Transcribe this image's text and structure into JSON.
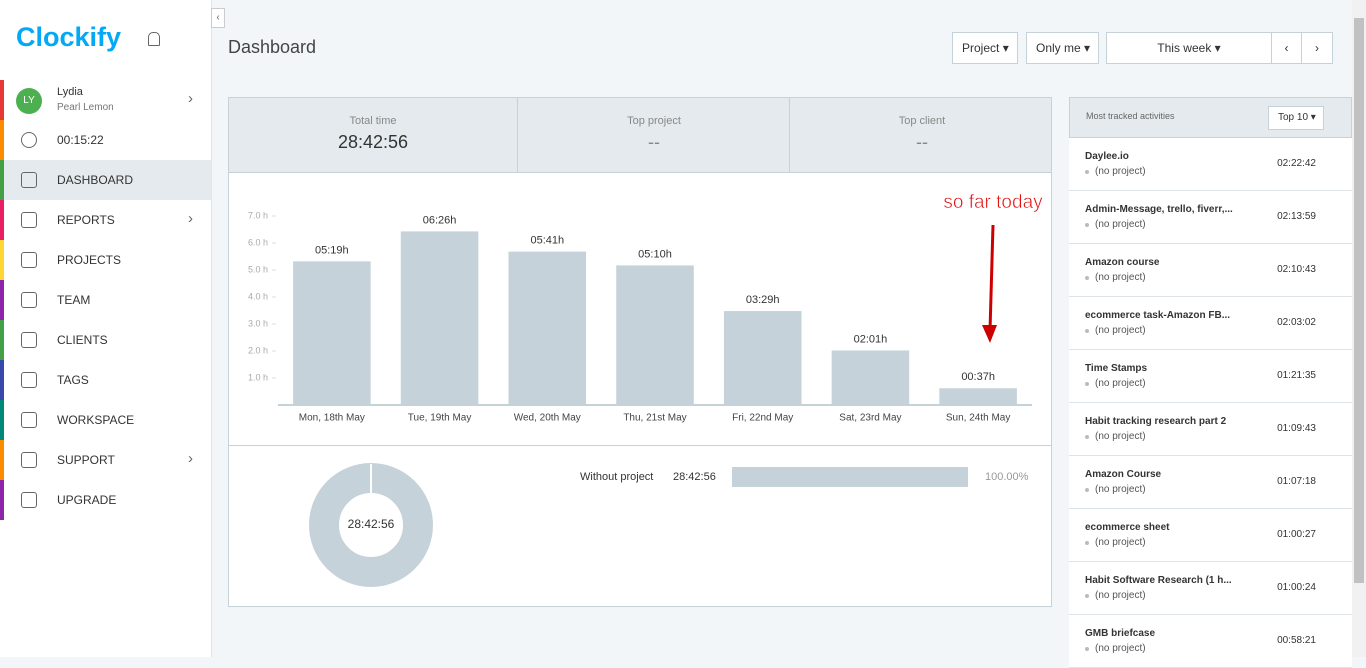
{
  "brand": "Clockify",
  "user": {
    "initials": "LY",
    "name": "Lydia",
    "workspace": "Pearl Lemon"
  },
  "timer": "00:15:22",
  "nav": [
    "DASHBOARD",
    "REPORTS",
    "PROJECTS",
    "TEAM",
    "CLIENTS",
    "TAGS",
    "WORKSPACE",
    "SUPPORT",
    "UPGRADE"
  ],
  "header": {
    "title": "Dashboard",
    "filters": [
      "Project",
      "Only me"
    ],
    "range": "This week"
  },
  "summary": [
    {
      "label": "Total time",
      "value": "28:42:56"
    },
    {
      "label": "Top project",
      "value": "--"
    },
    {
      "label": "Top client",
      "value": "--"
    }
  ],
  "chart_data": {
    "type": "bar",
    "categories": [
      "Mon, 18th May",
      "Tue, 19th May",
      "Wed, 20th May",
      "Thu, 21st May",
      "Fri, 22nd May",
      "Sat, 23rd May",
      "Sun, 24th May"
    ],
    "values": [
      5.32,
      6.43,
      5.68,
      5.17,
      3.48,
      2.02,
      0.62
    ],
    "value_labels": [
      "05:19h",
      "06:26h",
      "05:41h",
      "05:10h",
      "03:29h",
      "02:01h",
      "00:37h"
    ],
    "color": "#c6d2d9",
    "ylim": [
      0,
      7
    ],
    "yticks": [
      {
        "value": 1,
        "label": "1.0 h"
      },
      {
        "value": 2,
        "label": "2.0 h"
      },
      {
        "value": 3,
        "label": "3.0 h"
      },
      {
        "value": 4,
        "label": "4.0 h"
      },
      {
        "value": 5,
        "label": "5.0 h"
      },
      {
        "value": 6,
        "label": "6.0 h"
      },
      {
        "value": 7,
        "label": "7.0 h"
      }
    ],
    "annotation": "so far today"
  },
  "breakdown": {
    "donut_label": "28:42:56",
    "rows": [
      {
        "name": "Without project",
        "time": "28:42:56",
        "percent": "100.00%"
      }
    ]
  },
  "activities": {
    "title": "Most tracked activities",
    "limit": "Top 10",
    "items": [
      {
        "name": "Daylee.io",
        "project": "(no project)",
        "time": "02:22:42"
      },
      {
        "name": "Admin-Message, trello, fiverr,...",
        "project": "(no project)",
        "time": "02:13:59"
      },
      {
        "name": "Amazon course",
        "project": "(no project)",
        "time": "02:10:43"
      },
      {
        "name": "ecommerce task-Amazon FB...",
        "project": "(no project)",
        "time": "02:03:02"
      },
      {
        "name": "Time Stamps",
        "project": "(no project)",
        "time": "01:21:35"
      },
      {
        "name": "Habit tracking research part 2",
        "project": "(no project)",
        "time": "01:09:43"
      },
      {
        "name": "Amazon Course",
        "project": "(no project)",
        "time": "01:07:18"
      },
      {
        "name": "ecommerce sheet",
        "project": "(no project)",
        "time": "01:00:27"
      },
      {
        "name": "Habit Software Research (1 h...",
        "project": "(no project)",
        "time": "01:00:24"
      },
      {
        "name": "GMB briefcase",
        "project": "(no project)",
        "time": "00:58:21"
      }
    ]
  }
}
